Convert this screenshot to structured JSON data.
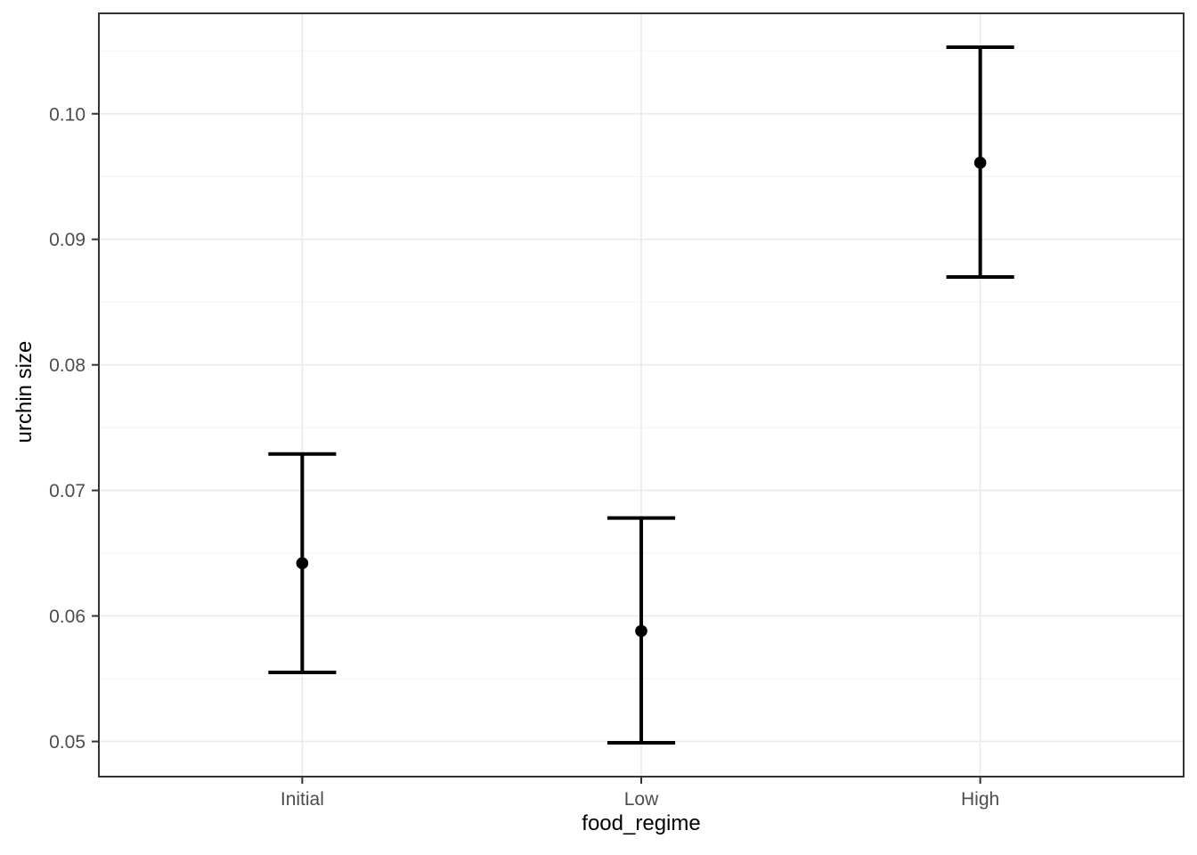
{
  "figure": {
    "background_color": "#FFFFFF"
  },
  "chart_data": {
    "type": "scatter",
    "subtype": "point-estimate-with-error-bars",
    "title": "",
    "xlabel": "food_regime",
    "ylabel": "urchin size",
    "categories": [
      "Initial",
      "Low",
      "High"
    ],
    "series": [
      {
        "name": "mean",
        "values": [
          0.0642,
          0.0588,
          0.0961
        ]
      },
      {
        "name": "ci_lower",
        "values": [
          0.0555,
          0.0499,
          0.087
        ]
      },
      {
        "name": "ci_upper",
        "values": [
          0.0729,
          0.0678,
          0.1053
        ]
      }
    ],
    "y_ticks": [
      0.05,
      0.06,
      0.07,
      0.08,
      0.09,
      0.1
    ],
    "y_tick_labels": [
      "0.05",
      "0.06",
      "0.07",
      "0.08",
      "0.09",
      "0.10"
    ],
    "ylim": [
      0.0472,
      0.108
    ],
    "grid": "horizontal major+minor, vertical major at each category",
    "legend": false,
    "errorbar_cap_width_units": 0.2,
    "colors": {
      "point": "#000000",
      "errorbar": "#000000",
      "panel_border": "#333333",
      "tick_mark": "#333333",
      "grid_major": "#EBEBEB",
      "grid_minor": "#F2F2F2",
      "tick_label": "#4D4D4D",
      "axis_title": "#000000",
      "panel_background": "#FFFFFF"
    }
  }
}
